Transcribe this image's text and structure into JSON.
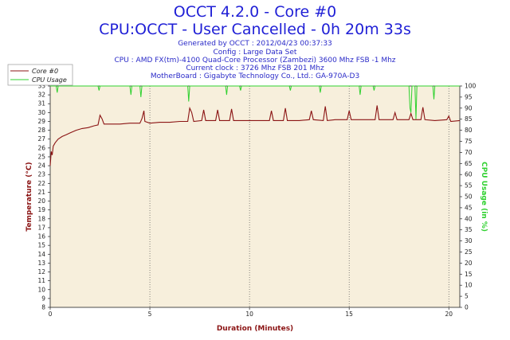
{
  "header": {
    "title": "OCCT 4.2.0 - Core #0",
    "subtitle": "CPU:OCCT - User Cancelled - 0h 20m 33s",
    "info_lines": [
      "Generated by OCCT : 2012/04/23 00:37:33",
      "Config : Large Data Set",
      "CPU : AMD FX(tm)-4100 Quad-Core Processor (Zambezi) 3600 Mhz FSB -1 Mhz",
      "Current clock : 3726 Mhz FSB 201 Mhz",
      "MotherBoard : Gigabyte Technology Co., Ltd.: GA-970A-D3"
    ]
  },
  "colors": {
    "background": "#ffffff",
    "plot_background": "#f7efdc",
    "temperature": "#8b1414",
    "cpu_usage": "#2fd12f",
    "title": "#1f1fd6",
    "info": "#2a2ac8",
    "grid": "#555555"
  },
  "chart_data": {
    "type": "line",
    "xlabel": "Duration (Minutes)",
    "ylabel_left": "Temperature (°C)",
    "ylabel_right": "CPU Usage (in %)",
    "xlim": [
      0,
      20.55
    ],
    "ylim_left": [
      8,
      33
    ],
    "ylim_right": [
      0,
      100
    ],
    "x_ticks": [
      "0",
      "5",
      "10",
      "15",
      "20"
    ],
    "y_ticks_left": [
      "8",
      "9",
      "10",
      "11",
      "12",
      "13",
      "14",
      "15",
      "16",
      "17",
      "18",
      "19",
      "20",
      "21",
      "22",
      "23",
      "24",
      "25",
      "26",
      "27",
      "28",
      "29",
      "30",
      "31",
      "32",
      "33"
    ],
    "y_ticks_right": [
      "0",
      "5",
      "10",
      "15",
      "20",
      "25",
      "30",
      "35",
      "40",
      "45",
      "50",
      "55",
      "60",
      "65",
      "70",
      "75",
      "80",
      "85",
      "90",
      "95",
      "100"
    ],
    "grid": "dotted vertical at every 5 minutes",
    "legend_position": "top-left",
    "series": [
      {
        "name": "Core #0",
        "axis": "left",
        "points": [
          [
            0,
            24.0
          ],
          [
            0.05,
            25.6
          ],
          [
            0.1,
            25.2
          ],
          [
            0.15,
            26.2
          ],
          [
            0.25,
            26.6
          ],
          [
            0.4,
            27.0
          ],
          [
            0.6,
            27.3
          ],
          [
            0.8,
            27.5
          ],
          [
            1.0,
            27.7
          ],
          [
            1.3,
            28.0
          ],
          [
            1.6,
            28.2
          ],
          [
            1.9,
            28.3
          ],
          [
            2.2,
            28.5
          ],
          [
            2.4,
            28.6
          ],
          [
            2.5,
            29.7
          ],
          [
            2.6,
            29.3
          ],
          [
            2.7,
            28.7
          ],
          [
            3.0,
            28.7
          ],
          [
            3.5,
            28.7
          ],
          [
            4.0,
            28.8
          ],
          [
            4.5,
            28.8
          ],
          [
            4.6,
            29.3
          ],
          [
            4.7,
            30.2
          ],
          [
            4.75,
            29.0
          ],
          [
            5.0,
            28.8
          ],
          [
            5.5,
            28.9
          ],
          [
            6.0,
            28.9
          ],
          [
            6.5,
            29.0
          ],
          [
            6.9,
            29.0
          ],
          [
            7.0,
            30.5
          ],
          [
            7.1,
            30.0
          ],
          [
            7.2,
            29.0
          ],
          [
            7.6,
            29.1
          ],
          [
            7.7,
            30.3
          ],
          [
            7.8,
            29.1
          ],
          [
            8.3,
            29.1
          ],
          [
            8.4,
            30.3
          ],
          [
            8.5,
            29.1
          ],
          [
            9.0,
            29.1
          ],
          [
            9.1,
            30.4
          ],
          [
            9.2,
            29.1
          ],
          [
            9.8,
            29.1
          ],
          [
            10.5,
            29.1
          ],
          [
            11.0,
            29.1
          ],
          [
            11.1,
            30.2
          ],
          [
            11.2,
            29.1
          ],
          [
            11.7,
            29.1
          ],
          [
            11.8,
            30.5
          ],
          [
            11.9,
            29.1
          ],
          [
            12.5,
            29.1
          ],
          [
            13.0,
            29.2
          ],
          [
            13.1,
            30.2
          ],
          [
            13.2,
            29.2
          ],
          [
            13.7,
            29.1
          ],
          [
            13.8,
            30.7
          ],
          [
            13.9,
            29.1
          ],
          [
            14.3,
            29.2
          ],
          [
            14.9,
            29.2
          ],
          [
            15.0,
            30.2
          ],
          [
            15.1,
            29.2
          ],
          [
            15.6,
            29.2
          ],
          [
            16.3,
            29.2
          ],
          [
            16.4,
            30.8
          ],
          [
            16.5,
            29.2
          ],
          [
            17.2,
            29.2
          ],
          [
            17.3,
            30.0
          ],
          [
            17.4,
            29.2
          ],
          [
            18.0,
            29.2
          ],
          [
            18.1,
            29.9
          ],
          [
            18.2,
            29.2
          ],
          [
            18.6,
            29.2
          ],
          [
            18.7,
            30.6
          ],
          [
            18.8,
            29.2
          ],
          [
            19.3,
            29.1
          ],
          [
            19.9,
            29.2
          ],
          [
            20.0,
            29.6
          ],
          [
            20.1,
            29.0
          ],
          [
            20.55,
            29.1
          ]
        ]
      },
      {
        "name": "CPU Usage",
        "axis": "right",
        "points": [
          [
            0,
            100
          ],
          [
            0.3,
            100
          ],
          [
            0.35,
            97
          ],
          [
            0.4,
            100
          ],
          [
            2.4,
            100
          ],
          [
            2.45,
            98
          ],
          [
            2.5,
            100
          ],
          [
            4.0,
            100
          ],
          [
            4.05,
            96
          ],
          [
            4.1,
            100
          ],
          [
            4.5,
            100
          ],
          [
            4.55,
            95
          ],
          [
            4.6,
            100
          ],
          [
            6.9,
            100
          ],
          [
            6.95,
            93
          ],
          [
            7.0,
            100
          ],
          [
            7.05,
            100
          ],
          [
            8.8,
            100
          ],
          [
            8.85,
            96
          ],
          [
            8.9,
            100
          ],
          [
            9.5,
            100
          ],
          [
            9.55,
            98
          ],
          [
            9.6,
            100
          ],
          [
            12.0,
            100
          ],
          [
            12.05,
            98
          ],
          [
            12.1,
            100
          ],
          [
            13.5,
            100
          ],
          [
            13.55,
            97
          ],
          [
            13.6,
            100
          ],
          [
            15.5,
            100
          ],
          [
            15.55,
            96
          ],
          [
            15.6,
            100
          ],
          [
            16.2,
            100
          ],
          [
            16.25,
            98
          ],
          [
            16.3,
            100
          ],
          [
            18.0,
            100
          ],
          [
            18.05,
            90
          ],
          [
            18.1,
            88
          ],
          [
            18.15,
            100
          ],
          [
            18.3,
            100
          ],
          [
            18.35,
            85
          ],
          [
            18.4,
            100
          ],
          [
            19.2,
            100
          ],
          [
            19.25,
            94
          ],
          [
            19.3,
            100
          ],
          [
            20.55,
            100
          ]
        ]
      }
    ]
  }
}
